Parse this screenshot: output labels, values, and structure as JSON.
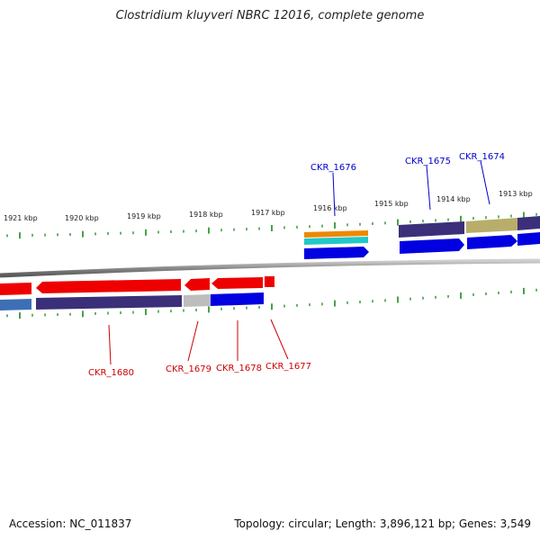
{
  "title": "Clostridium kluyveri NBRC 12016, complete genome",
  "footer": {
    "accession": "Accession: NC_011837",
    "summary": "Topology: circular; Length: 3,896,121 bp; Genes: 3,549"
  },
  "colors": {
    "forward_label": "#0000cc",
    "reverse_label": "#cc0000",
    "tick": "#1a8a1a",
    "backbone": "#888888"
  },
  "kbp_labels": [
    "1921 kbp",
    "1920 kbp",
    "1919 kbp",
    "1918 kbp",
    "1917 kbp",
    "1916 kbp",
    "1915 kbp",
    "1914 kbp",
    "1913 kbp"
  ],
  "forward_genes": [
    {
      "label": "CKR_1676",
      "color": "#0000ee"
    },
    {
      "label": "CKR_1675",
      "color": "#0000ee"
    },
    {
      "label": "CKR_1674",
      "color": "#0000ee"
    }
  ],
  "reverse_genes": [
    {
      "label": "CKR_1680",
      "color": "#ee0000"
    },
    {
      "label": "CKR_1679",
      "color": "#ee0000"
    },
    {
      "label": "CKR_1678",
      "color": "#ee0000"
    },
    {
      "label": "CKR_1677",
      "color": "#ee0000"
    }
  ]
}
